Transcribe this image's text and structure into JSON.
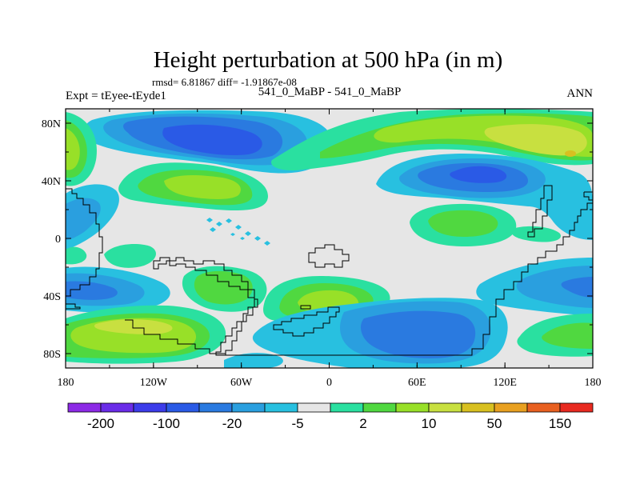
{
  "title": "Height perturbation at 500 hPa (in m)",
  "stats": "rmsd= 6.81867 diff= -1.91867e-08",
  "left_label": "Expt = tEyee-tEyde1",
  "center_label": "541_0_MaBP - 541_0_MaBP",
  "right_label": "ANN",
  "lat_ticks": [
    {
      "label": "80N",
      "lat": 80
    },
    {
      "label": "40N",
      "lat": 40
    },
    {
      "label": "0",
      "lat": 0
    },
    {
      "label": "40S",
      "lat": -40
    },
    {
      "label": "80S",
      "lat": -80
    }
  ],
  "lon_ticks": [
    {
      "label": "180",
      "lon": -180
    },
    {
      "label": "120W",
      "lon": -120
    },
    {
      "label": "60W",
      "lon": -60
    },
    {
      "label": "0",
      "lon": 0
    },
    {
      "label": "60E",
      "lon": 60
    },
    {
      "label": "120E",
      "lon": 120
    },
    {
      "label": "180",
      "lon": 180
    }
  ],
  "colorbar": {
    "colors": [
      "#8c2ae6",
      "#6a2ce8",
      "#3c3cea",
      "#2a5ae6",
      "#2a7ae0",
      "#2a9fdf",
      "#28c0e0",
      "#e6e6e6",
      "#2ae0a0",
      "#50d840",
      "#98e028",
      "#c8e040",
      "#d8c020",
      "#e8a020",
      "#e86020",
      "#e82a20"
    ],
    "labels": [
      "-200",
      "-100",
      "-20",
      "-5",
      "2",
      "10",
      "50",
      "150"
    ]
  },
  "colors": {
    "neg_strong": "#2a5ae6",
    "neg_medium": "#2a7ae0",
    "neg_light": "#2a9fdf",
    "neg_lighter": "#28c0e0",
    "neutral": "#e6e6e6",
    "pos_light": "#2ae0a0",
    "pos_medium": "#50d840",
    "pos_strong": "#98e028",
    "pos_stronger": "#c8e040",
    "pos_max": "#d8c020"
  }
}
